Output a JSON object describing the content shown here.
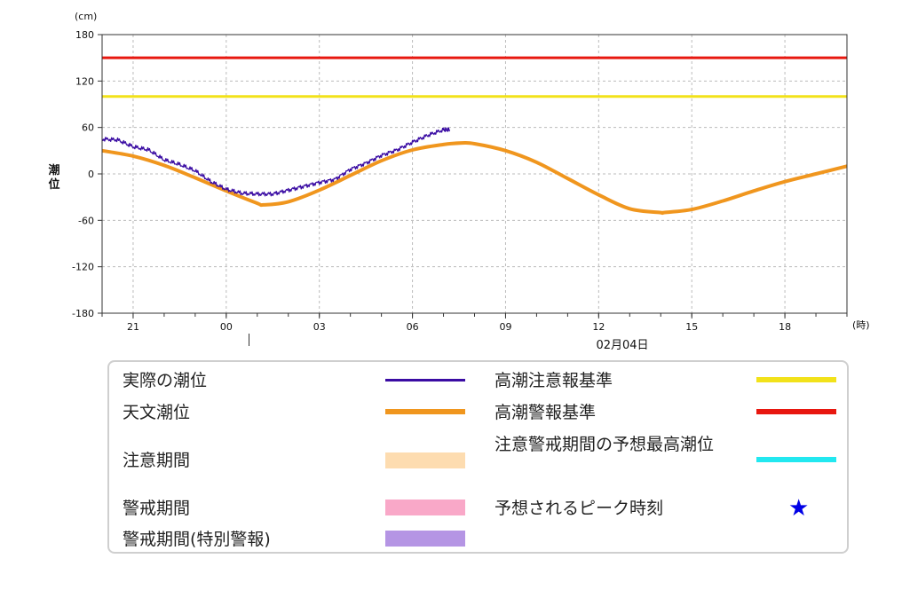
{
  "chart_data": {
    "type": "line",
    "y_unit": "(cm)",
    "x_unit": "(時)",
    "ylabel": "潮位",
    "ylim": [
      -180,
      180
    ],
    "y_ticks": [
      180,
      120,
      60,
      0,
      -60,
      -120,
      -180
    ],
    "x_range_hours": [
      -4.0,
      20.0
    ],
    "x_ticks": [
      {
        "h": -3,
        "label": "21"
      },
      {
        "h": 0,
        "label": "00"
      },
      {
        "h": 3,
        "label": "03"
      },
      {
        "h": 6,
        "label": "06"
      },
      {
        "h": 9,
        "label": "09"
      },
      {
        "h": 12,
        "label": "12"
      },
      {
        "h": 15,
        "label": "15"
      },
      {
        "h": 18,
        "label": "18"
      }
    ],
    "date_label": "02月04日",
    "grid": true,
    "series": [
      {
        "name": "高潮警報基準",
        "color": "#e8170f",
        "x": [
          -4.0,
          20.0
        ],
        "y": [
          150,
          150
        ]
      },
      {
        "name": "高潮注意報基準",
        "color": "#f2e21a",
        "x": [
          -4.0,
          20.0
        ],
        "y": [
          100,
          100
        ]
      },
      {
        "name": "天文潮位",
        "color": "#f0961e",
        "x": [
          -4.0,
          -3.0,
          -2.0,
          -1.0,
          0.0,
          1.0,
          1.2,
          2.0,
          3.0,
          4.0,
          5.0,
          6.0,
          7.0,
          7.6,
          8.0,
          9.0,
          10.0,
          11.0,
          12.0,
          13.0,
          14.0,
          14.1,
          15.0,
          16.0,
          17.0,
          18.0,
          19.0,
          20.0
        ],
        "y": [
          30,
          23,
          11,
          -5,
          -22,
          -38,
          -40,
          -36,
          -21,
          -2,
          17,
          31,
          38,
          40,
          39,
          30,
          15,
          -6,
          -27,
          -45,
          -50,
          -50,
          -46,
          -35,
          -22,
          -10,
          0,
          10
        ]
      },
      {
        "name": "実際の潮位",
        "color": "#3a0ca3",
        "x": [
          -4.0,
          -3.5,
          -3.0,
          -2.5,
          -2.0,
          -1.5,
          -1.0,
          -0.5,
          0.0,
          0.5,
          1.0,
          1.5,
          2.0,
          2.5,
          3.0,
          3.5,
          4.0,
          4.5,
          5.0,
          5.5,
          6.0,
          6.5,
          7.0,
          7.2
        ],
        "y": [
          45,
          44,
          35,
          31,
          18,
          12,
          4,
          -10,
          -20,
          -25,
          -26,
          -26,
          -21,
          -16,
          -11,
          -7,
          6,
          14,
          24,
          31,
          41,
          50,
          57,
          57
        ]
      }
    ]
  },
  "legend": {
    "items": [
      {
        "label": "実際の潮位",
        "color": "#3a0ca3",
        "kind": "line"
      },
      {
        "label": "高潮注意報基準",
        "color": "#f2e21a",
        "kind": "line"
      },
      {
        "label": "天文潮位",
        "color": "#f0961e",
        "kind": "line"
      },
      {
        "label": "高潮警報基準",
        "color": "#e8170f",
        "kind": "line"
      },
      {
        "label": "注意期間",
        "color": "#fddcb0",
        "kind": "band"
      },
      {
        "label": "注意警戒期間の予想最高潮位",
        "color": "#22e8f0",
        "kind": "line"
      },
      {
        "label": "警戒期間",
        "color": "#f9a8c8",
        "kind": "band"
      },
      {
        "label": "予想されるピーク時刻",
        "color": "#0000e6",
        "kind": "star",
        "symbol": "★"
      },
      {
        "label": "警戒期間(特別警報)",
        "color": "#b595e4",
        "kind": "band"
      }
    ]
  }
}
